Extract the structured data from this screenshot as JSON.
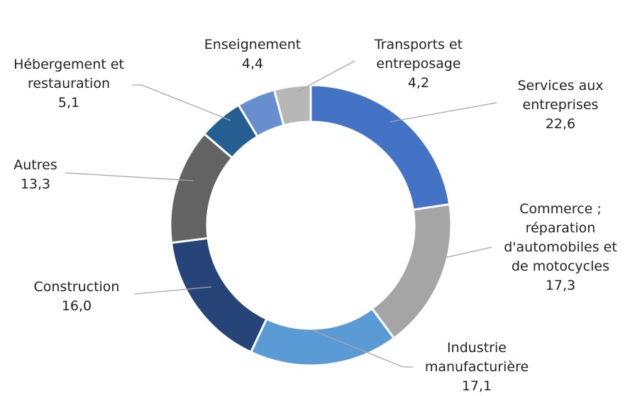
{
  "chart_data": {
    "type": "pie",
    "categories": [
      "Services aux entreprises",
      "Commerce ; réparation d'automobiles et de motocycles",
      "Industrie manufacturière",
      "Construction",
      "Autres",
      "Hébergement et restauration",
      "Enseignement",
      "Transports et entreposage"
    ],
    "values": [
      22.6,
      17.3,
      17.1,
      16.0,
      13.3,
      5.1,
      4.4,
      4.2
    ],
    "value_labels": [
      "22,6",
      "17,3",
      "17,1",
      "16,0",
      "13,3",
      "5,1",
      "4,4",
      "4,2"
    ],
    "colors": [
      "#4472c4",
      "#a5a5a5",
      "#5b9bd5",
      "#264478",
      "#636363",
      "#255e91",
      "#698ed0",
      "#b7b7b7"
    ]
  }
}
